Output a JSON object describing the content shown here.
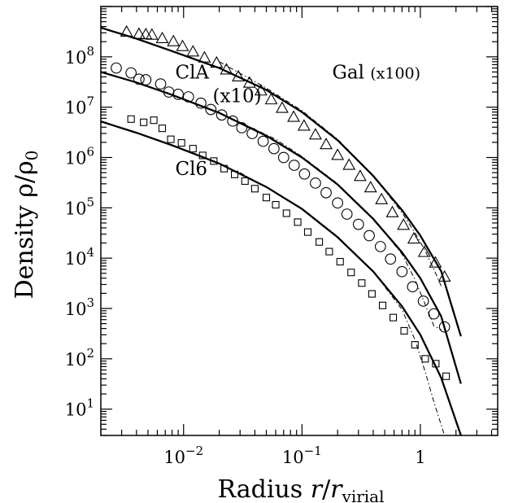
{
  "chart_data": {
    "type": "scatter",
    "xlabel": {
      "text": "Radius",
      "var": "r",
      "slash": "/",
      "var_sub": "r",
      "sub": "virial"
    },
    "ylabel": {
      "text": "Density",
      "rho": "ρ",
      "slash": "/",
      "rho0": "ρ",
      "sub": "0"
    },
    "x_scale": "log",
    "y_scale": "log",
    "xlim": [
      0.002,
      4.5
    ],
    "ylim": [
      3,
      1000000000
    ],
    "x_tick_labels": [
      {
        "value": 0.01,
        "base": "10",
        "exp": "−2"
      },
      {
        "value": 0.1,
        "base": "10",
        "exp": "−1"
      },
      {
        "value": 1,
        "text": "1"
      }
    ],
    "y_tick_labels": [
      {
        "value": 10,
        "base": "10",
        "exp": "1"
      },
      {
        "value": 100,
        "base": "10",
        "exp": "2"
      },
      {
        "value": 1000,
        "base": "10",
        "exp": "3"
      },
      {
        "value": 10000,
        "base": "10",
        "exp": "4"
      },
      {
        "value": 100000,
        "base": "10",
        "exp": "5"
      },
      {
        "value": 1000000,
        "base": "10",
        "exp": "6"
      },
      {
        "value": 10000000,
        "base": "10",
        "exp": "7"
      },
      {
        "value": 100000000,
        "base": "10",
        "exp": "8"
      }
    ],
    "annotations": {
      "gal": {
        "name": "Gal",
        "scale": "(x100)",
        "x": 0.18,
        "y": 50000000
      },
      "cla": {
        "name": "ClA",
        "scale": "(x10)",
        "x": 0.0085,
        "y": 50000000
      },
      "cl6": {
        "name": "Cl6",
        "x": 0.0085,
        "y": 600000
      }
    },
    "series": [
      {
        "marker": "triangle",
        "points": [
          [
            0.0033,
            310000000
          ],
          [
            0.0042,
            280000000
          ],
          [
            0.0048,
            275000000
          ],
          [
            0.0054,
            270000000
          ],
          [
            0.0066,
            230000000
          ],
          [
            0.0082,
            200000000
          ],
          [
            0.0098,
            160000000
          ],
          [
            0.012,
            125000000
          ],
          [
            0.015,
            95000000
          ],
          [
            0.019,
            75000000
          ],
          [
            0.023,
            55000000
          ],
          [
            0.029,
            40000000
          ],
          [
            0.036,
            30000000
          ],
          [
            0.045,
            21000000
          ],
          [
            0.055,
            14000000
          ],
          [
            0.068,
            9500000
          ],
          [
            0.085,
            6300000
          ],
          [
            0.104,
            4200000
          ],
          [
            0.13,
            2800000
          ],
          [
            0.16,
            1800000
          ],
          [
            0.2,
            1100000
          ],
          [
            0.25,
            700000
          ],
          [
            0.31,
            420000
          ],
          [
            0.38,
            250000
          ],
          [
            0.47,
            145000
          ],
          [
            0.58,
            80000
          ],
          [
            0.72,
            45000
          ],
          [
            0.88,
            24000
          ],
          [
            1.08,
            13000
          ],
          [
            1.34,
            8000
          ],
          [
            1.6,
            4200
          ]
        ]
      },
      {
        "marker": "circle",
        "points": [
          [
            0.0027,
            60000000
          ],
          [
            0.0036,
            48000000
          ],
          [
            0.0042,
            36000000
          ],
          [
            0.0048,
            35000000
          ],
          [
            0.0064,
            29000000
          ],
          [
            0.0075,
            20000000
          ],
          [
            0.009,
            18000000
          ],
          [
            0.011,
            16000000
          ],
          [
            0.014,
            12000000
          ],
          [
            0.017,
            9000000
          ],
          [
            0.021,
            7000000
          ],
          [
            0.026,
            5300000
          ],
          [
            0.031,
            3900000
          ],
          [
            0.038,
            3000000
          ],
          [
            0.047,
            2100000
          ],
          [
            0.058,
            1500000
          ],
          [
            0.07,
            1000000
          ],
          [
            0.086,
            700000
          ],
          [
            0.105,
            470000
          ],
          [
            0.13,
            310000
          ],
          [
            0.16,
            200000
          ],
          [
            0.2,
            125000
          ],
          [
            0.24,
            75000
          ],
          [
            0.3,
            47000
          ],
          [
            0.37,
            28000
          ],
          [
            0.46,
            17000
          ],
          [
            0.56,
            9600
          ],
          [
            0.7,
            5400
          ],
          [
            0.86,
            2700
          ],
          [
            1.06,
            1400
          ],
          [
            1.3,
            780
          ],
          [
            1.6,
            430
          ]
        ]
      },
      {
        "marker": "square",
        "points": [
          [
            0.0036,
            5800000
          ],
          [
            0.0046,
            5000000
          ],
          [
            0.0056,
            5500000
          ],
          [
            0.0066,
            3800000
          ],
          [
            0.0078,
            2300000
          ],
          [
            0.0096,
            1950000
          ],
          [
            0.012,
            1500000
          ],
          [
            0.0145,
            1100000
          ],
          [
            0.018,
            850000
          ],
          [
            0.022,
            600000
          ],
          [
            0.027,
            460000
          ],
          [
            0.033,
            340000
          ],
          [
            0.04,
            240000
          ],
          [
            0.05,
            160000
          ],
          [
            0.06,
            115000
          ],
          [
            0.074,
            78000
          ],
          [
            0.092,
            52000
          ],
          [
            0.112,
            33000
          ],
          [
            0.14,
            21000
          ],
          [
            0.17,
            13500
          ],
          [
            0.21,
            8500
          ],
          [
            0.26,
            5200
          ],
          [
            0.32,
            3200
          ],
          [
            0.39,
            1950
          ],
          [
            0.48,
            1150
          ],
          [
            0.59,
            660
          ],
          [
            0.73,
            360
          ],
          [
            0.9,
            190
          ],
          [
            1.1,
            100
          ],
          [
            1.35,
            80
          ],
          [
            1.65,
            45
          ]
        ]
      },
      {
        "style": "solid",
        "points": [
          [
            0.002,
            380000000
          ],
          [
            0.004,
            230000000
          ],
          [
            0.008,
            130000000
          ],
          [
            0.02,
            60000000
          ],
          [
            0.05,
            22000000
          ],
          [
            0.1,
            8000000
          ],
          [
            0.2,
            2200000
          ],
          [
            0.4,
            430000
          ],
          [
            0.7,
            90000
          ],
          [
            1,
            28000
          ],
          [
            1.5,
            5500
          ],
          [
            2.2,
            280
          ]
        ]
      },
      {
        "style": "solid",
        "points": [
          [
            0.002,
            50000000
          ],
          [
            0.004,
            31000000
          ],
          [
            0.008,
            17500000
          ],
          [
            0.02,
            7700000
          ],
          [
            0.05,
            2700000
          ],
          [
            0.1,
            1000000
          ],
          [
            0.2,
            290000
          ],
          [
            0.4,
            60000
          ],
          [
            0.7,
            13000
          ],
          [
            1,
            4000
          ],
          [
            1.5,
            700
          ],
          [
            2.2,
            32
          ]
        ]
      },
      {
        "style": "solid",
        "points": [
          [
            0.002,
            5200000
          ],
          [
            0.004,
            3100000
          ],
          [
            0.008,
            1750000
          ],
          [
            0.02,
            760000
          ],
          [
            0.05,
            260000
          ],
          [
            0.1,
            95000
          ],
          [
            0.2,
            26000
          ],
          [
            0.4,
            5400
          ],
          [
            0.7,
            1100
          ],
          [
            1,
            300
          ],
          [
            1.5,
            42
          ],
          [
            2.2,
            3
          ]
        ]
      },
      {
        "style": "dash-dot",
        "points": [
          [
            0.02,
            80000000
          ],
          [
            0.05,
            24000000
          ],
          [
            0.1,
            8500000
          ],
          [
            0.2,
            2300000
          ],
          [
            0.4,
            440000
          ],
          [
            0.7,
            80000
          ],
          [
            0.9,
            32000
          ],
          [
            1.1,
            14000
          ],
          [
            1.3,
            6000
          ],
          [
            1.5,
            2800
          ]
        ]
      },
      {
        "style": "dash-dot",
        "points": [
          [
            0.03,
            5000000
          ],
          [
            0.06,
            2300000
          ],
          [
            0.1,
            1050000
          ],
          [
            0.2,
            300000
          ],
          [
            0.4,
            62000
          ],
          [
            0.7,
            12000
          ],
          [
            0.9,
            3800
          ],
          [
            1.1,
            1200
          ],
          [
            1.3,
            450
          ],
          [
            1.5,
            380
          ]
        ]
      },
      {
        "style": "dash-dot",
        "points": [
          [
            0.03,
            500000
          ],
          [
            0.06,
            200000
          ],
          [
            0.1,
            98000
          ],
          [
            0.2,
            27000
          ],
          [
            0.4,
            5400
          ],
          [
            0.7,
            950
          ],
          [
            0.9,
            240
          ],
          [
            1.1,
            55
          ],
          [
            1.3,
            14
          ],
          [
            1.6,
            3
          ]
        ]
      }
    ]
  }
}
